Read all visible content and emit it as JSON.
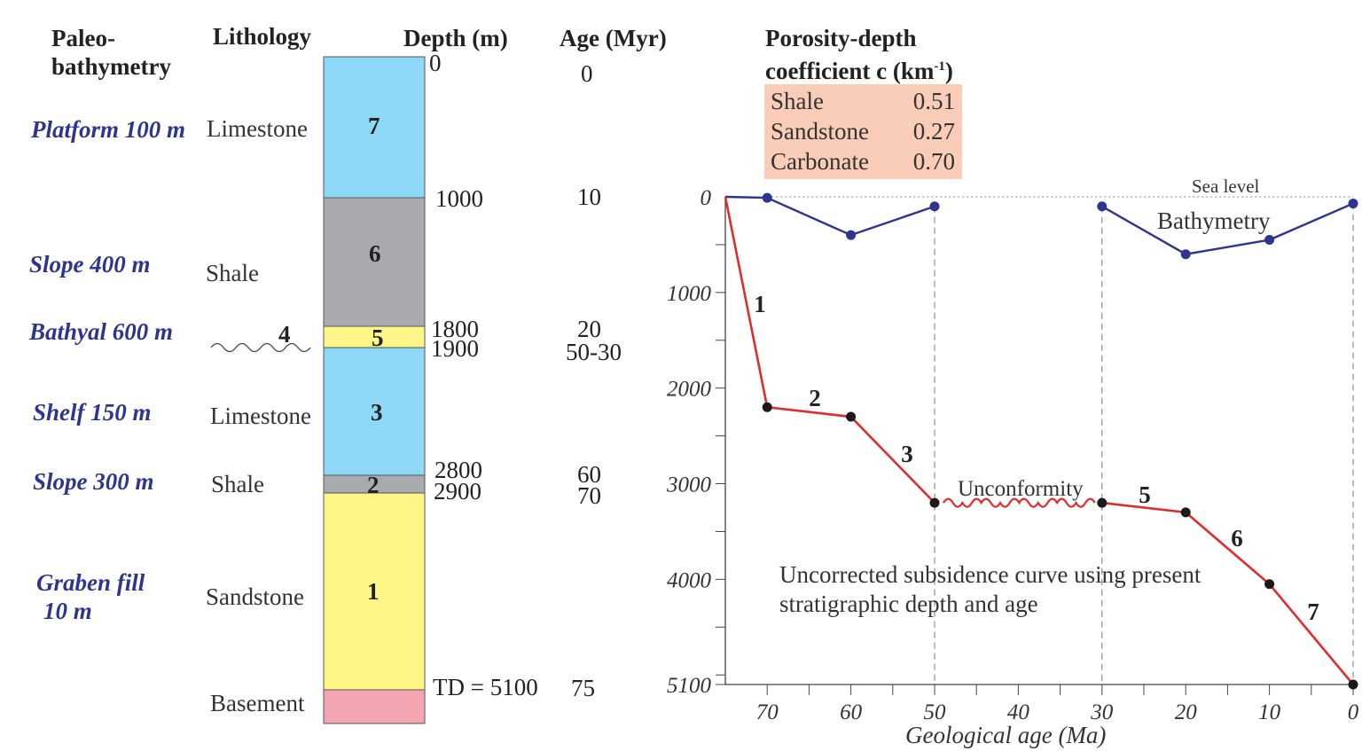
{
  "headers": {
    "paleo_line1": "Paleo-",
    "paleo_line2": "bathymetry",
    "lithology": "Lithology",
    "depth": "Depth (m)",
    "age": "Age (Myr)",
    "porosity_line1": "Porosity-depth",
    "porosity_line2_prefix": "coefficient c (km",
    "porosity_sup": "-1",
    "porosity_line2_suffix": ")"
  },
  "paleobathymetry": [
    {
      "text": "Platform 100 m"
    },
    {
      "text": "Slope 400 m"
    },
    {
      "text": "Bathyal 600 m"
    },
    {
      "text": "Shelf 150 m"
    },
    {
      "text": "Slope 300 m"
    },
    {
      "text": "Graben fill"
    },
    {
      "text": "10 m"
    }
  ],
  "lithology_labels": [
    "Limestone",
    "Shale",
    "Limestone",
    "Shale",
    "Sandstone",
    "Basement"
  ],
  "unconformity_unit": "4",
  "column_units": [
    "7",
    "6",
    "5",
    "3",
    "2",
    "1"
  ],
  "depth_labels": [
    "0",
    "1000",
    "1800",
    "1900",
    "2800",
    "2900",
    "TD = 5100"
  ],
  "age_labels": [
    "0",
    "10",
    "20",
    "50-30",
    "60",
    "70",
    "75"
  ],
  "colors": {
    "limestone": "#8dd8f6",
    "shale": "#a9aaad",
    "sandstone": "#fff688",
    "basement": "#f3a6b1",
    "bathymetry": "#2e3590",
    "subsidence": "#e02c2c",
    "coef_box": "#f9cdb8"
  },
  "porosity_coefficients": [
    {
      "rock": "Shale",
      "value": "0.51"
    },
    {
      "rock": "Sandstone",
      "value": "0.27"
    },
    {
      "rock": "Carbonate",
      "value": "0.70"
    }
  ],
  "chart_data": {
    "type": "line",
    "xlabel": "Geological age (Ma)",
    "ylabel": "",
    "xlim": [
      75,
      0
    ],
    "ylim": [
      0,
      5100
    ],
    "x_ticks": [
      "70",
      "60",
      "50",
      "40",
      "30",
      "20",
      "10",
      "0"
    ],
    "y_ticks": [
      "0",
      "1000",
      "2000",
      "3000",
      "4000",
      "5100"
    ],
    "series": [
      {
        "name": "Bathymetry",
        "segments": [
          [
            {
              "x": 75,
              "y": 0
            },
            {
              "x": 70,
              "y": 10
            },
            {
              "x": 60,
              "y": 400
            },
            {
              "x": 50,
              "y": 100
            }
          ],
          [
            {
              "x": 30,
              "y": 100
            },
            {
              "x": 20,
              "y": 600
            },
            {
              "x": 10,
              "y": 450
            },
            {
              "x": 0,
              "y": 70
            }
          ]
        ]
      },
      {
        "name": "Uncorrected subsidence",
        "segments": [
          [
            {
              "x": 75,
              "y": 0
            },
            {
              "x": 70,
              "y": 2200
            },
            {
              "x": 60,
              "y": 2300
            },
            {
              "x": 50,
              "y": 3200
            }
          ],
          [
            {
              "x": 30,
              "y": 3200
            },
            {
              "x": 20,
              "y": 3300
            },
            {
              "x": 10,
              "y": 4050
            },
            {
              "x": 0,
              "y": 5100
            }
          ]
        ]
      }
    ],
    "segment_labels": [
      "1",
      "2",
      "3",
      "5",
      "6",
      "7"
    ],
    "annotations": {
      "sea_level": "Sea level",
      "bathymetry": "Bathymetry",
      "unconformity": "Unconformity",
      "caption_line1": "Uncorrected subsidence curve using present",
      "caption_line2": "stratigraphic depth and age"
    }
  }
}
